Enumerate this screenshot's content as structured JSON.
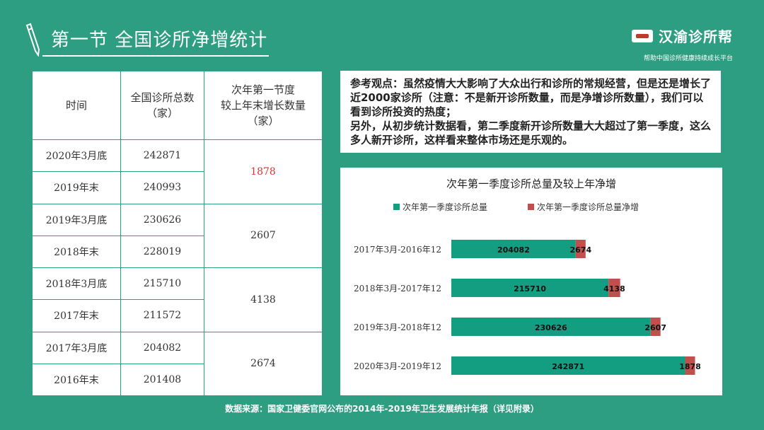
{
  "header": {
    "title": "第一节  全国诊所净增统计",
    "brand_name": "汉渝诊所帮",
    "brand_sub": "帮助中国诊所健康持续成长平台"
  },
  "table": {
    "headers": [
      "时间",
      "全国诊所总数\n（家）",
      "次年第一节度\n较上年末增长数量\n（家）"
    ],
    "groups": [
      {
        "rows": [
          [
            "2020年3月底",
            "242871"
          ],
          [
            "2019年末",
            "240993"
          ]
        ],
        "growth": "1878",
        "highlight": true
      },
      {
        "rows": [
          [
            "2019年3月底",
            "230626"
          ],
          [
            "2018年末",
            "228019"
          ]
        ],
        "growth": "2607",
        "highlight": false
      },
      {
        "rows": [
          [
            "2018年3月底",
            "215710"
          ],
          [
            "2017年末",
            "211572"
          ]
        ],
        "growth": "4138",
        "highlight": false
      },
      {
        "rows": [
          [
            "2017年3月底",
            "204082"
          ],
          [
            "2016年末",
            "201408"
          ]
        ],
        "growth": "2674",
        "highlight": false
      }
    ]
  },
  "note": {
    "line1": "参考观点：虽然疫情大大影响了大众出行和诊所的常规经营，但是还是增长了近2000家诊所（注意：不是新开诊所数量，而是净增诊所数量），我们可以看到诊所投资的热度；",
    "line2": "另外，从初步统计数据看，第二季度新开诊所数量大大超过了第一季度，这么多人新开诊所，这样看来整体市场还是乐观的。"
  },
  "chart_data": {
    "type": "bar",
    "orientation": "horizontal",
    "stacked": true,
    "title": "次年第一季度诊所总量及较上年净增",
    "categories": [
      "2017年3月-2016年12",
      "2018年3月-2017年12",
      "2019年3月-2018年12",
      "2020年3月-2019年12"
    ],
    "series": [
      {
        "name": "次年第一季度诊所总量",
        "values": [
          204082,
          215710,
          230626,
          242871
        ],
        "color": "#139E82"
      },
      {
        "name": "次年第一季度诊所总量净增",
        "values": [
          2674,
          4138,
          2607,
          1878
        ],
        "color": "#C0504D"
      }
    ],
    "legend": "top",
    "grid": false
  },
  "footer": {
    "source": "数据来源：国家卫健委官网公布的2014年-2019年卫生发展统计年报（详见附录）"
  },
  "colors": {
    "background": "#2E9E82",
    "accent_red": "#E03030"
  }
}
